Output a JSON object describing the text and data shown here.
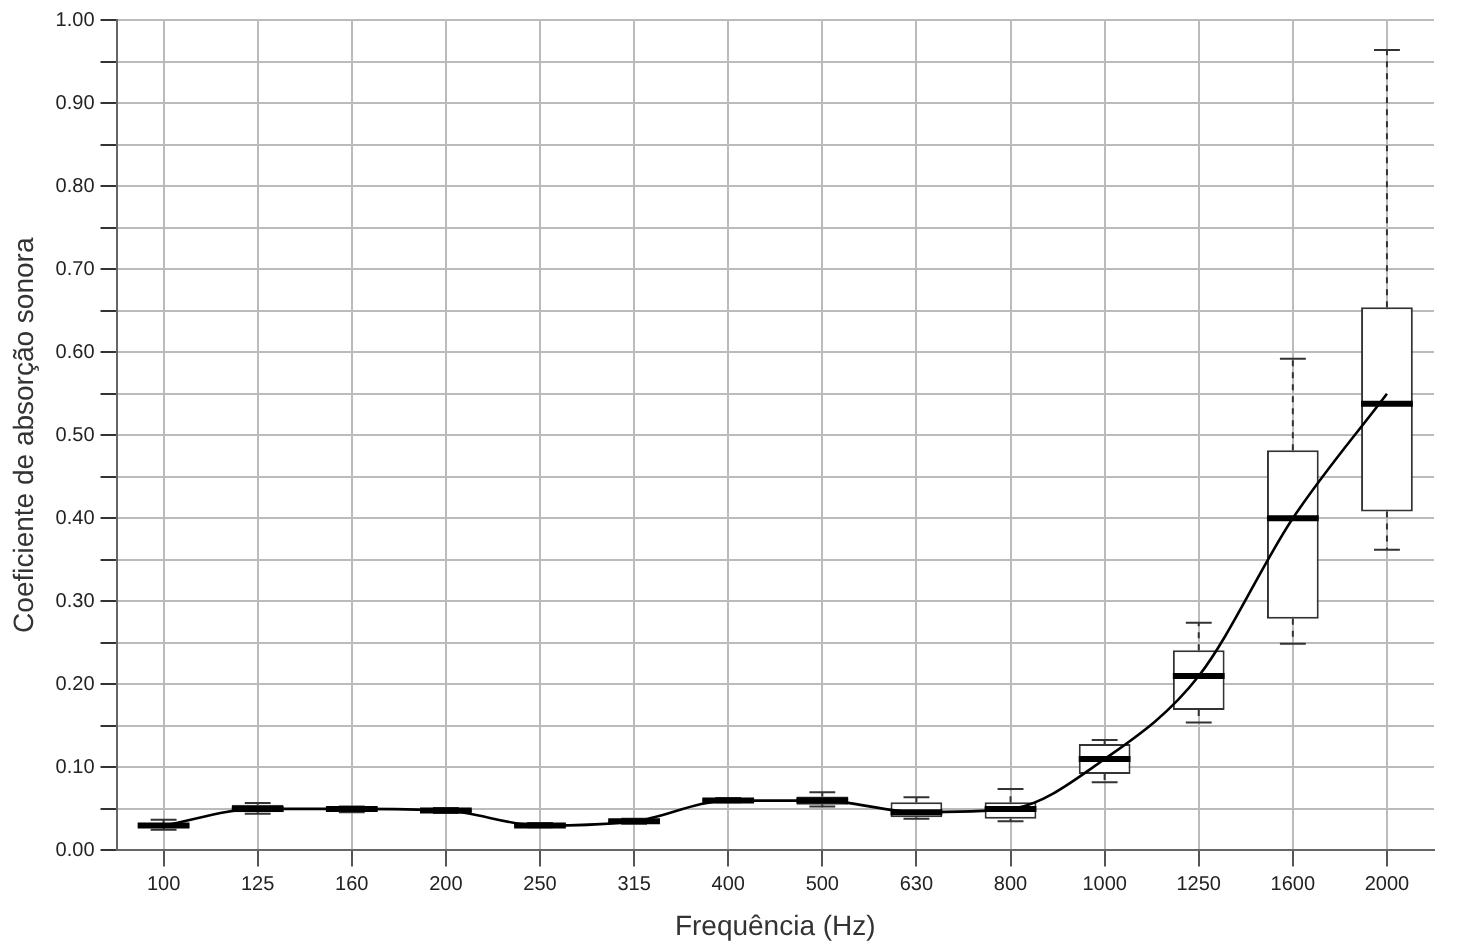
{
  "chart_data": {
    "type": "box",
    "xlabel": "Frequência (Hz)",
    "ylabel": "Coeficiente de absorção sonora",
    "categories": [
      "100",
      "125",
      "160",
      "200",
      "250",
      "315",
      "400",
      "500",
      "630",
      "800",
      "1000",
      "1250",
      "1600",
      "2000"
    ],
    "color": "#333333",
    "boxes": [
      {
        "low": 0.025,
        "q1": 0.027,
        "median": 0.03,
        "q3": 0.033,
        "high": 0.037
      },
      {
        "low": 0.044,
        "q1": 0.046,
        "median": 0.05,
        "q3": 0.055,
        "high": 0.057
      },
      {
        "low": 0.046,
        "q1": 0.047,
        "median": 0.05,
        "q3": 0.052,
        "high": 0.053
      },
      {
        "low": 0.045,
        "q1": 0.046,
        "median": 0.048,
        "q3": 0.05,
        "high": 0.051
      },
      {
        "low": 0.028,
        "q1": 0.029,
        "median": 0.03,
        "q3": 0.032,
        "high": 0.033
      },
      {
        "low": 0.032,
        "q1": 0.033,
        "median": 0.035,
        "q3": 0.037,
        "high": 0.038
      },
      {
        "low": 0.058,
        "q1": 0.059,
        "median": 0.06,
        "q3": 0.062,
        "high": 0.063
      },
      {
        "low": 0.053,
        "q1": 0.055,
        "median": 0.06,
        "q3": 0.065,
        "high": 0.07
      },
      {
        "low": 0.038,
        "q1": 0.04,
        "median": 0.046,
        "q3": 0.058,
        "high": 0.064
      },
      {
        "low": 0.035,
        "q1": 0.038,
        "median": 0.05,
        "q3": 0.058,
        "high": 0.074
      },
      {
        "low": 0.082,
        "q1": 0.092,
        "median": 0.11,
        "q3": 0.128,
        "high": 0.133
      },
      {
        "low": 0.154,
        "q1": 0.169,
        "median": 0.21,
        "q3": 0.241,
        "high": 0.274
      },
      {
        "low": 0.249,
        "q1": 0.279,
        "median": 0.4,
        "q3": 0.482,
        "high": 0.592
      },
      {
        "low": 0.362,
        "q1": 0.408,
        "median": 0.538,
        "q3": 0.654,
        "high": 0.964
      }
    ],
    "series": [
      {
        "type": "line",
        "color": "#000000",
        "values": [
          0.03,
          0.05,
          0.05,
          0.048,
          0.03,
          0.035,
          0.06,
          0.06,
          0.046,
          0.05,
          0.11,
          0.21,
          0.4,
          0.55
        ]
      }
    ],
    "marker": "none",
    "ylim": [
      0,
      1
    ],
    "yticks": [
      {
        "value": 0,
        "label": "0.00"
      },
      {
        "value": 0.05,
        "label": null
      },
      {
        "value": 0.1,
        "label": "0.10"
      },
      {
        "value": 0.15,
        "label": null
      },
      {
        "value": 0.2,
        "label": "0.20"
      },
      {
        "value": 0.25,
        "label": null
      },
      {
        "value": 0.3,
        "label": "0.30"
      },
      {
        "value": 0.35,
        "label": null
      },
      {
        "value": 0.4,
        "label": "0.40"
      },
      {
        "value": 0.45,
        "label": null
      },
      {
        "value": 0.5,
        "label": "0.50"
      },
      {
        "value": 0.55,
        "label": null
      },
      {
        "value": 0.6,
        "label": "0.60"
      },
      {
        "value": 0.65,
        "label": null
      },
      {
        "value": 0.7,
        "label": "0.70"
      },
      {
        "value": 0.75,
        "label": null
      },
      {
        "value": 0.8,
        "label": "0.80"
      },
      {
        "value": 0.85,
        "label": null
      },
      {
        "value": 0.9,
        "label": "0.90"
      },
      {
        "value": 0.95,
        "label": null
      },
      {
        "value": 1,
        "label": "1.00"
      }
    ],
    "grid": true,
    "legend": false
  }
}
